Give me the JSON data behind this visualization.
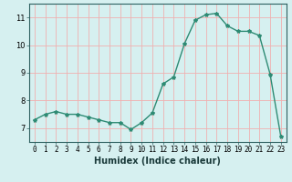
{
  "x": [
    0,
    1,
    2,
    3,
    4,
    5,
    6,
    7,
    8,
    9,
    10,
    11,
    12,
    13,
    14,
    15,
    16,
    17,
    18,
    19,
    20,
    21,
    22,
    23
  ],
  "y": [
    7.3,
    7.5,
    7.6,
    7.5,
    7.5,
    7.4,
    7.3,
    7.2,
    7.2,
    6.95,
    7.2,
    7.55,
    8.6,
    8.85,
    10.05,
    10.9,
    11.1,
    11.15,
    10.7,
    10.5,
    10.5,
    10.35,
    8.95,
    6.7
  ],
  "xlabel": "Humidex (Indice chaleur)",
  "line_color": "#2e8b74",
  "marker": "*",
  "marker_size": 3,
  "bg_color": "#d6f0f0",
  "grid_color": "#f0b0b0",
  "ylim": [
    6.5,
    11.5
  ],
  "yticks": [
    7,
    8,
    9,
    10,
    11
  ],
  "xtick_labels": [
    "0",
    "1",
    "2",
    "3",
    "4",
    "5",
    "6",
    "7",
    "8",
    "9",
    "10",
    "11",
    "12",
    "13",
    "14",
    "15",
    "16",
    "17",
    "18",
    "19",
    "20",
    "21",
    "22",
    "23"
  ],
  "xlabel_fontsize": 7,
  "tick_fontsize": 5.5
}
